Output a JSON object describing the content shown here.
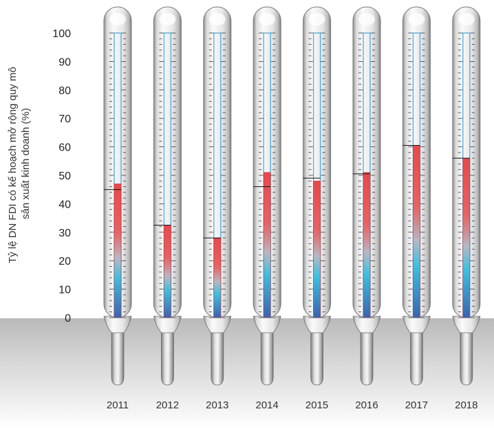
{
  "chart_data": {
    "type": "bar",
    "style": "thermometer",
    "categories": [
      "2011",
      "2012",
      "2013",
      "2014",
      "2015",
      "2016",
      "2017",
      "2018"
    ],
    "values": [
      47,
      32.5,
      28,
      51,
      48,
      51,
      60.5,
      56
    ],
    "previous_values": [
      45,
      32.5,
      28,
      46,
      49,
      50.5,
      60.5,
      56
    ],
    "ylabel_lines": [
      "Tỷ lệ DN FDI có kế hoạch mở rộng quy mô",
      "sản xuất kinh doanh (%)"
    ],
    "ylim": [
      0,
      100
    ],
    "yticks": [
      "0",
      "10",
      "20",
      "30",
      "40",
      "50",
      "60",
      "70",
      "80",
      "90",
      "100"
    ],
    "colors": {
      "fill_top": "#e8484a",
      "fill_mid": "#b8b8c4",
      "fill_cyan": "#3ec0e0",
      "fill_bottom": "#3a63b0",
      "outline": "#5aaee0",
      "ground": "#c9c9c9"
    }
  }
}
